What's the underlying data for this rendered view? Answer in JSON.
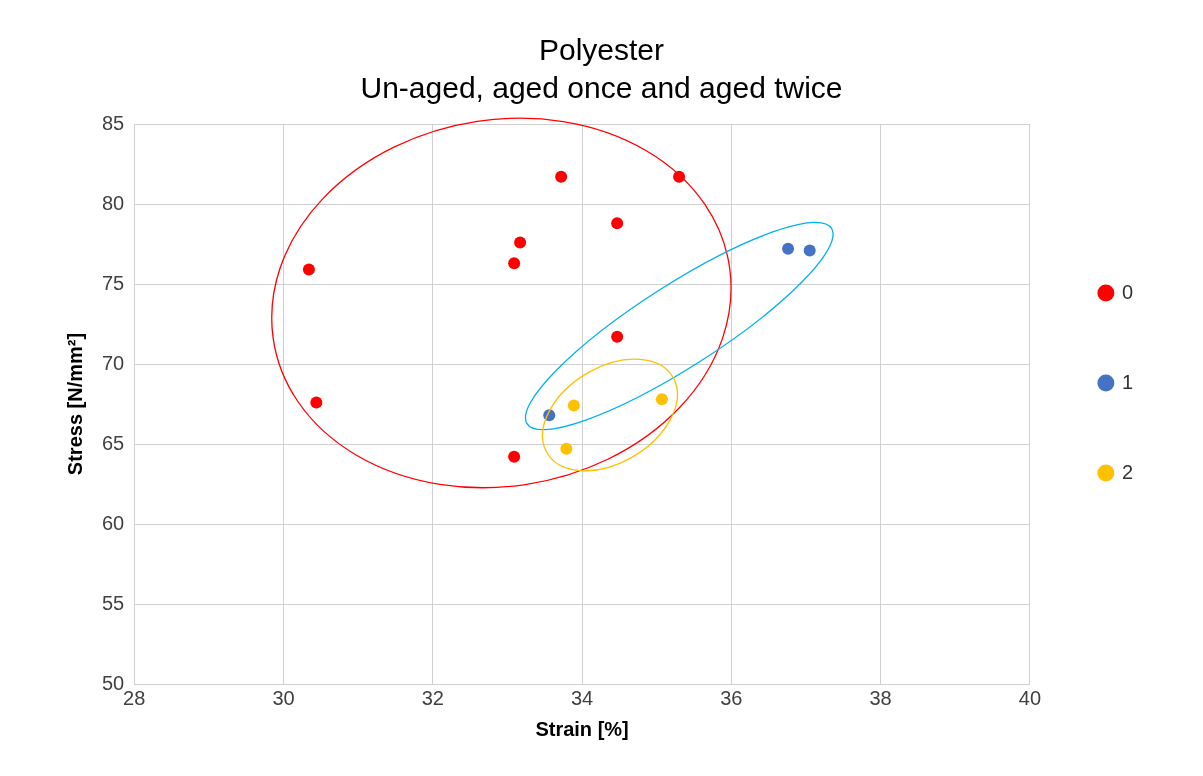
{
  "chart_data": {
    "type": "scatter",
    "title": "Polyester",
    "subtitle": "Un-aged, aged once and aged twice",
    "xlabel": "Strain [%]",
    "ylabel": "Stress [N/mm²]",
    "xlim": [
      28,
      40
    ],
    "xticks": [
      28,
      30,
      32,
      34,
      36,
      38,
      40
    ],
    "ylim": [
      50,
      85
    ],
    "yticks": [
      50,
      55,
      60,
      65,
      70,
      75,
      80,
      85
    ],
    "grid": true,
    "legend": "right",
    "marker": "circle",
    "series": [
      {
        "name": "0",
        "color": "#ff0000",
        "x": [
          30.34,
          30.44,
          33.09,
          33.17,
          33.72,
          34.47,
          35.3,
          34.47,
          33.09
        ],
        "values": [
          75.9,
          67.6,
          76.3,
          77.6,
          81.7,
          78.8,
          81.7,
          71.7,
          64.2
        ]
      },
      {
        "name": "1",
        "color": "#4472c4",
        "x": [
          33.56,
          36.76,
          37.05
        ],
        "values": [
          66.8,
          77.2,
          77.1
        ]
      },
      {
        "name": "2",
        "color": "#ffc000",
        "x": [
          33.89,
          33.79,
          35.07
        ],
        "values": [
          67.4,
          64.7,
          67.8
        ]
      }
    ]
  }
}
